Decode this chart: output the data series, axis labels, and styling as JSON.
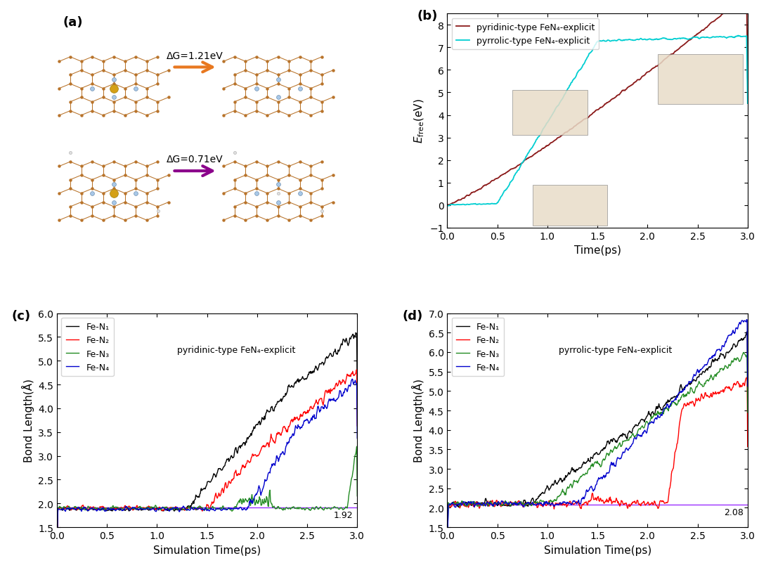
{
  "panel_b": {
    "xlabel": "Time(ps)",
    "xlim": [
      0.0,
      3.0
    ],
    "ylim": [
      -1,
      8.5
    ],
    "yticks": [
      -1,
      0,
      1,
      2,
      3,
      4,
      5,
      6,
      7,
      8
    ],
    "xticks": [
      0.0,
      0.5,
      1.0,
      1.5,
      2.0,
      2.5,
      3.0
    ],
    "line1_color": "#8B1A1A",
    "line2_color": "#00CED1",
    "line1_label": "pyridinic-type FeN₄-explicit",
    "line2_label": "pyrrolic-type FeN₄-explicit"
  },
  "panel_c": {
    "annotation": "pyridinic-type FeN₄-explicit",
    "xlabel": "Simulation Time(ps)",
    "ylabel": "Bond Length(Å)",
    "xlim": [
      0.0,
      3.0
    ],
    "ylim": [
      1.5,
      6.0
    ],
    "yticks": [
      1.5,
      2.0,
      2.5,
      3.0,
      3.5,
      4.0,
      4.5,
      5.0,
      5.5,
      6.0
    ],
    "xticks": [
      0.0,
      0.5,
      1.0,
      1.5,
      2.0,
      2.5,
      3.0
    ],
    "hline_val": 1.92,
    "hline_color": "#9B30FF",
    "line_colors": [
      "#000000",
      "#FF0000",
      "#228B22",
      "#0000CD"
    ],
    "line_labels": [
      "Fe-N₁",
      "Fe-N₂",
      "Fe-N₃",
      "Fe-N₄"
    ]
  },
  "panel_d": {
    "annotation": "pyrrolic-type FeN₄-explicit",
    "xlabel": "Simulation Time(ps)",
    "ylabel": "Bond Length(Å)",
    "xlim": [
      0.0,
      3.0
    ],
    "ylim": [
      1.5,
      7.0
    ],
    "yticks": [
      1.5,
      2.0,
      2.5,
      3.0,
      3.5,
      4.0,
      4.5,
      5.0,
      5.5,
      6.0,
      6.5,
      7.0
    ],
    "xticks": [
      0.0,
      0.5,
      1.0,
      1.5,
      2.0,
      2.5,
      3.0
    ],
    "hline_val": 2.08,
    "hline_color": "#9B30FF",
    "line_colors": [
      "#000000",
      "#FF0000",
      "#228B22",
      "#0000CD"
    ],
    "line_labels": [
      "Fe-N₁",
      "Fe-N₂",
      "Fe-N₃",
      "Fe-N₄"
    ]
  },
  "panel_a": {
    "arrow1_label": "ΔG=1.21eV",
    "arrow1_color": "#E87820",
    "arrow2_label": "ΔG=0.71eV",
    "arrow2_color": "#8B008B"
  },
  "c_atom_color": "#B8732A",
  "n_atom_color": "#A8C8E8",
  "fe_atom_color": "#D4A017",
  "h_atom_color": "#E8E8E8",
  "bond_color": "#B8732A",
  "bg_color": "#FFFFFF",
  "font_size": 11
}
